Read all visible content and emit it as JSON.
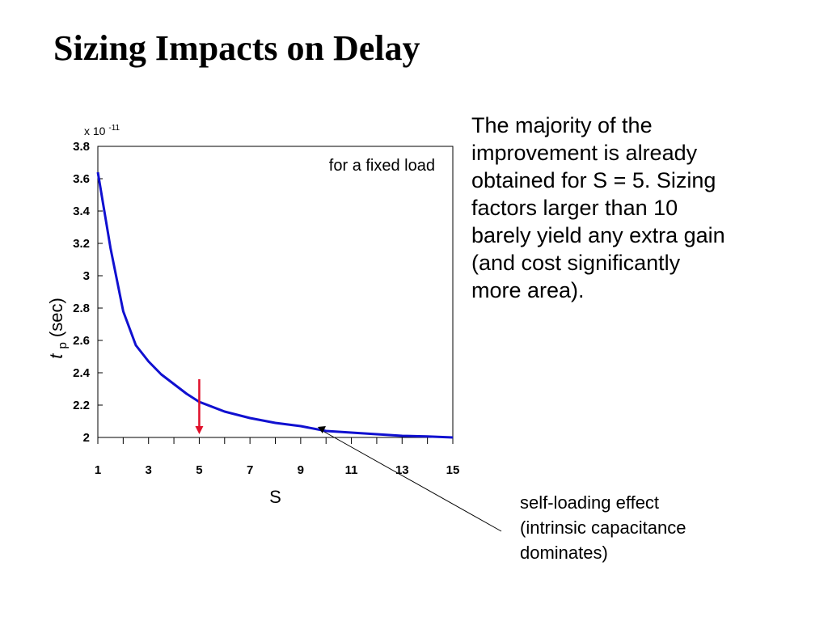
{
  "slide": {
    "title": "Sizing Impacts on Delay",
    "side_text": "The majority of the\nimprovement is already\nobtained for S = 5.  Sizing\nfactors larger than 10\nbarely yield any extra gain\n(and cost significantly\nmore area)."
  },
  "chart_data": {
    "type": "line",
    "title": "",
    "xlabel": "S",
    "ylabel": "tp(sec)",
    "ylabel_parts": {
      "main": "t",
      "sub": "p",
      "unit": "(sec)"
    },
    "y_multiplier": {
      "base": "x 10",
      "exponent": "-11"
    },
    "xlim": [
      1,
      15
    ],
    "ylim": [
      2,
      3.8
    ],
    "x_ticks": [
      1,
      3,
      5,
      7,
      9,
      11,
      13,
      15
    ],
    "x_tick_labels": [
      "1",
      "3",
      "5",
      "7",
      "9",
      "11",
      "13",
      "15"
    ],
    "y_ticks": [
      2,
      2.2,
      2.4,
      2.6,
      2.8,
      3,
      3.2,
      3.4,
      3.6,
      3.8
    ],
    "y_tick_labels": [
      "2",
      "2.2",
      "2.4",
      "2.6",
      "2.8",
      "3",
      "3.2",
      "3.4",
      "3.6",
      "3.8"
    ],
    "grid": false,
    "series": [
      {
        "color": "#1010d0",
        "x": [
          1,
          1.5,
          2,
          2.5,
          3,
          3.5,
          4,
          4.5,
          5,
          6,
          7,
          8,
          9,
          10,
          11,
          12,
          13,
          14,
          15
        ],
        "y": [
          3.64,
          3.17,
          2.78,
          2.57,
          2.47,
          2.39,
          2.33,
          2.27,
          2.22,
          2.16,
          2.12,
          2.09,
          2.07,
          2.04,
          2.03,
          2.02,
          2.01,
          2.006,
          2.0
        ]
      }
    ],
    "annotations": {
      "inner_note": "for a fixed load",
      "optimum_marker": {
        "x": 5,
        "y_from": 2.36,
        "y_to": 2.02,
        "color": "#e0102a"
      },
      "callout": {
        "lines": [
          "self-loading effect",
          "(intrinsic capacitance",
          "dominates)"
        ],
        "point": {
          "x": 9.8,
          "y": 2.05
        }
      }
    }
  }
}
